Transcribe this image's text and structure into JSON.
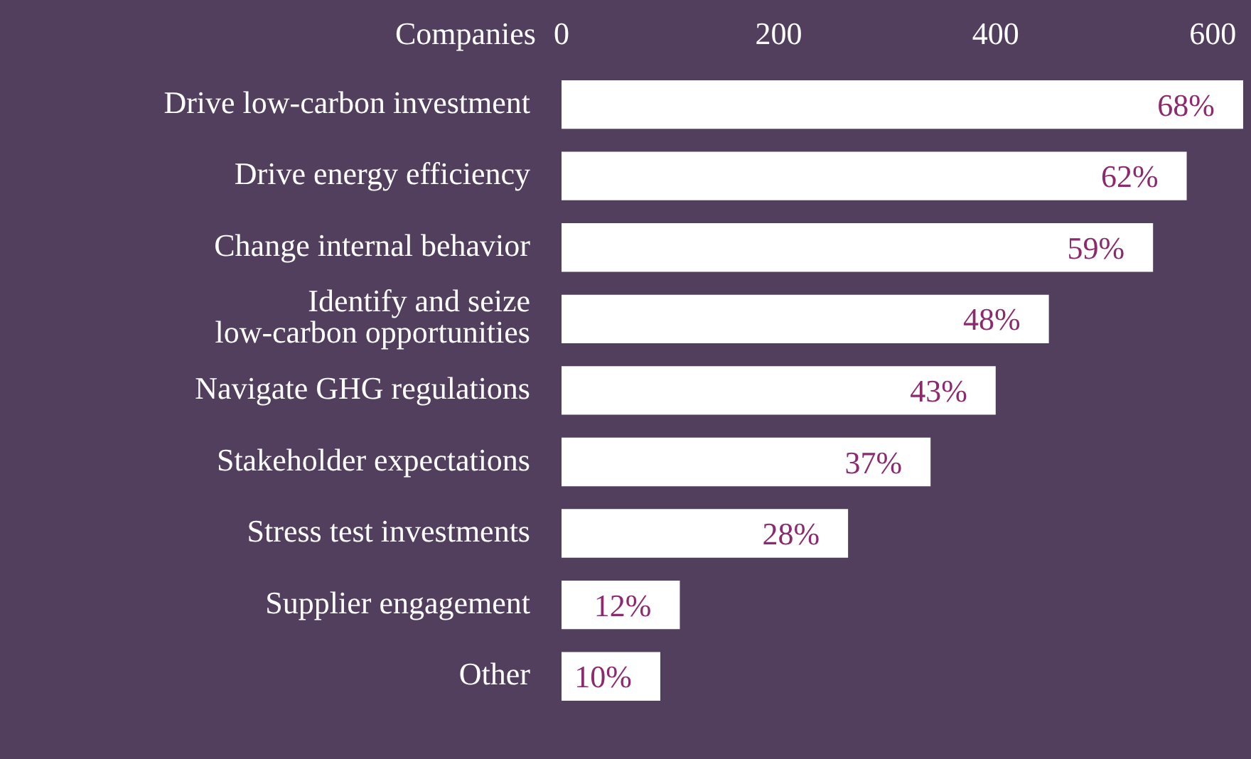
{
  "chart_data": {
    "type": "bar",
    "orientation": "horizontal",
    "xlabel": "Companies",
    "categories": [
      "Drive low-carbon investment",
      "Drive energy efficiency",
      "Change internal behavior",
      "Identify and seize\nlow-carbon opportunities",
      "Navigate GHG regulations",
      "Stakeholder expectations",
      "Stress test investments",
      "Supplier engagement",
      "Other"
    ],
    "values": [
      628,
      576,
      545,
      449,
      400,
      340,
      264,
      109,
      91
    ],
    "annotations": [
      {
        "text": "68%",
        "x": 628,
        "y": "Drive low-carbon investment"
      },
      {
        "text": "62%",
        "x": 576,
        "y": "Drive energy efficiency"
      },
      {
        "text": "59%",
        "x": 545,
        "y": "Change internal behavior"
      },
      {
        "text": "48%",
        "x": 449,
        "y": "Identify and seize\nlow-carbon opportunities"
      },
      {
        "text": "43%",
        "x": 400,
        "y": "Navigate GHG regulations"
      },
      {
        "text": "37%",
        "x": 340,
        "y": "Stakeholder expectations"
      },
      {
        "text": "28%",
        "x": 264,
        "y": "Stress test investments"
      },
      {
        "text": "12%",
        "x": 109,
        "y": "Supplier engagement"
      },
      {
        "text": "10%",
        "x": 91,
        "y": "Other"
      }
    ],
    "color": "#ffffff",
    "xlim": [
      0,
      630
    ],
    "xticks": [
      0,
      200,
      400,
      600
    ],
    "grid": false,
    "legend": false
  }
}
